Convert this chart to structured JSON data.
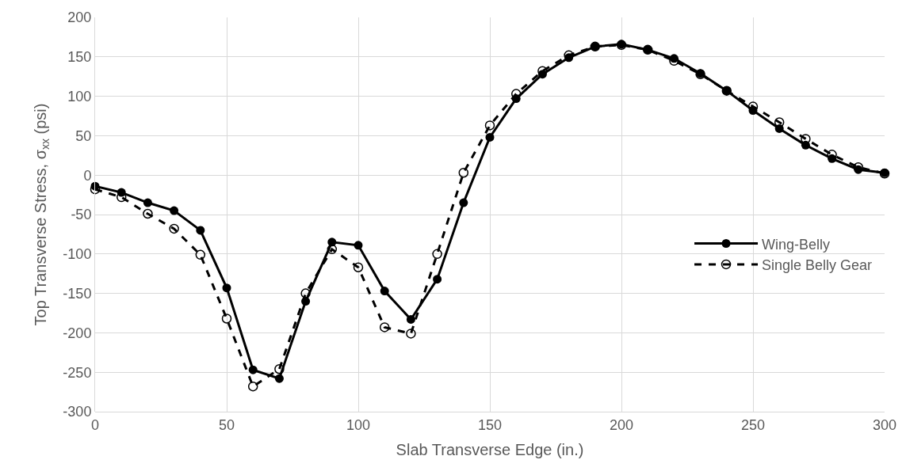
{
  "chart_data": {
    "type": "line",
    "xlabel": "Slab Transverse Edge (in.)",
    "ylabel": "Top Transverse Stress, σ$_{xx}$ (psi)",
    "x": [
      0,
      10,
      20,
      30,
      40,
      50,
      60,
      70,
      80,
      90,
      100,
      110,
      120,
      130,
      140,
      150,
      160,
      170,
      180,
      190,
      200,
      210,
      220,
      230,
      240,
      250,
      260,
      270,
      280,
      290,
      300
    ],
    "series": [
      {
        "name": "Wing-Belly",
        "color": "#000000",
        "marker": "circle",
        "line_style": "solid",
        "values": [
          -14,
          -22,
          -35,
          -45,
          -70,
          -143,
          -247,
          -258,
          -160,
          -85,
          -89,
          -147,
          -183,
          -132,
          -35,
          48,
          97,
          128,
          149,
          163,
          166,
          159,
          148,
          129,
          107,
          82,
          59,
          38,
          21,
          7,
          3
        ]
      },
      {
        "name": "Single Belly Gear",
        "color": "#000000",
        "marker": "open_circle",
        "line_style": "dashed",
        "values": [
          -18,
          -28,
          -49,
          -68,
          -101,
          -182,
          -268,
          -246,
          -150,
          -94,
          -117,
          -193,
          -201,
          -100,
          3,
          63,
          103,
          132,
          152,
          163,
          165,
          159,
          145,
          128,
          107,
          87,
          67,
          46,
          26,
          10,
          2
        ]
      }
    ],
    "xlim": [
      0,
      300
    ],
    "xticks": [
      0,
      50,
      100,
      150,
      200,
      250,
      300
    ],
    "ylim": [
      -300,
      200
    ],
    "yticks": [
      -300,
      -250,
      -200,
      -150,
      -100,
      -50,
      0,
      50,
      100,
      150,
      200
    ],
    "grid": true,
    "legend": "right"
  }
}
